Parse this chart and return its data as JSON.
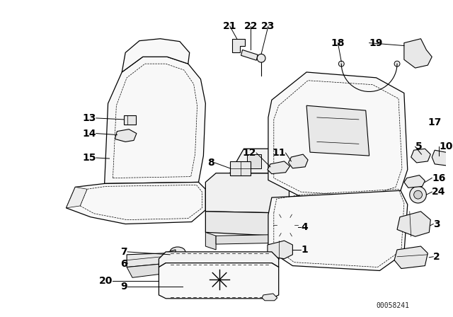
{
  "background_color": "#ffffff",
  "line_color": "#000000",
  "diagram_id": "00058241",
  "font_size": 9,
  "seat_fill": "#f8f8f8",
  "part_fill": "#e8e8e8"
}
